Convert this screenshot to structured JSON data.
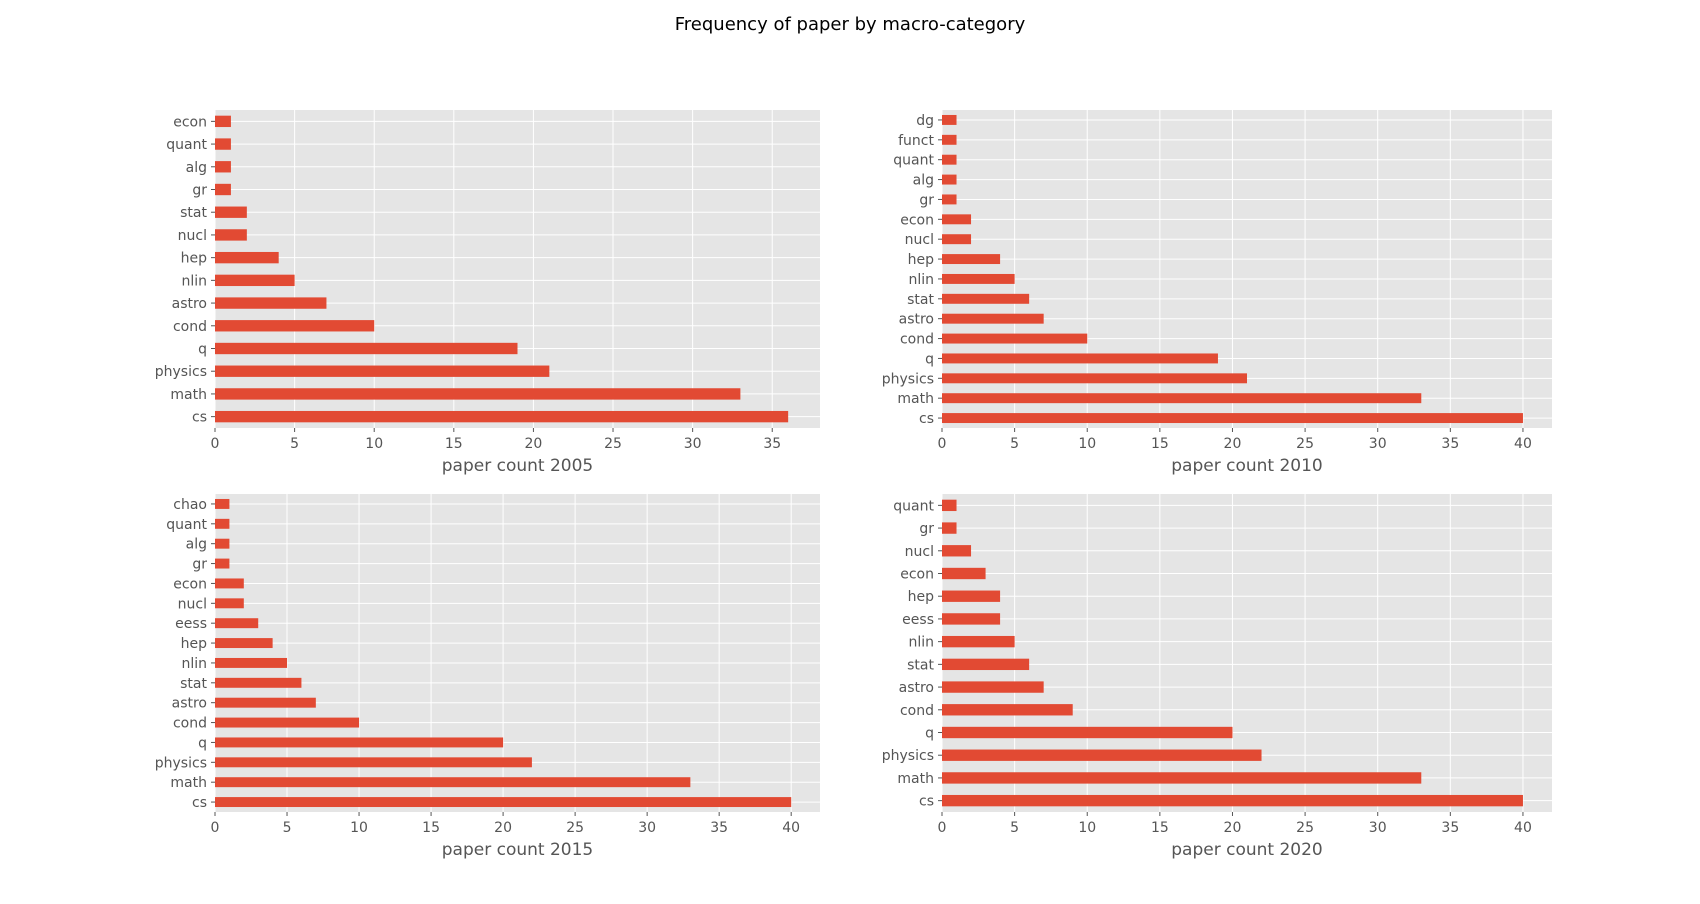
{
  "title": "Frequency of paper by macro-category",
  "colors": {
    "bar": "#e24a33",
    "plot_bg": "#e5e5e5",
    "grid": "#ffffff",
    "text": "#555555"
  },
  "chart_data": [
    {
      "type": "bar",
      "orientation": "horizontal",
      "xlabel": "paper count 2005",
      "xlim": [
        0,
        38
      ],
      "xticks": [
        0,
        5,
        10,
        15,
        20,
        25,
        30,
        35
      ],
      "categories": [
        "cs",
        "math",
        "physics",
        "q",
        "cond",
        "astro",
        "nlin",
        "hep",
        "nucl",
        "stat",
        "gr",
        "alg",
        "quant",
        "econ"
      ],
      "values": [
        36,
        33,
        21,
        19,
        10,
        7,
        5,
        4,
        2,
        2,
        1,
        1,
        1,
        1
      ],
      "grid": true
    },
    {
      "type": "bar",
      "orientation": "horizontal",
      "xlabel": "paper count 2010",
      "xlim": [
        0,
        42
      ],
      "xticks": [
        0,
        5,
        10,
        15,
        20,
        25,
        30,
        35,
        40
      ],
      "categories": [
        "cs",
        "math",
        "physics",
        "q",
        "cond",
        "astro",
        "stat",
        "nlin",
        "hep",
        "nucl",
        "econ",
        "gr",
        "alg",
        "quant",
        "funct",
        "dg"
      ],
      "values": [
        40,
        33,
        21,
        19,
        10,
        7,
        6,
        5,
        4,
        2,
        2,
        1,
        1,
        1,
        1,
        1
      ],
      "grid": true
    },
    {
      "type": "bar",
      "orientation": "horizontal",
      "xlabel": "paper count 2015",
      "xlim": [
        0,
        42
      ],
      "xticks": [
        0,
        5,
        10,
        15,
        20,
        25,
        30,
        35,
        40
      ],
      "categories": [
        "cs",
        "math",
        "physics",
        "q",
        "cond",
        "astro",
        "stat",
        "nlin",
        "hep",
        "eess",
        "nucl",
        "econ",
        "gr",
        "alg",
        "quant",
        "chao"
      ],
      "values": [
        40,
        33,
        22,
        20,
        10,
        7,
        6,
        5,
        4,
        3,
        2,
        2,
        1,
        1,
        1,
        1
      ],
      "grid": true
    },
    {
      "type": "bar",
      "orientation": "horizontal",
      "xlabel": "paper count 2020",
      "xlim": [
        0,
        42
      ],
      "xticks": [
        0,
        5,
        10,
        15,
        20,
        25,
        30,
        35,
        40
      ],
      "categories": [
        "cs",
        "math",
        "physics",
        "q",
        "cond",
        "astro",
        "stat",
        "nlin",
        "eess",
        "hep",
        "econ",
        "nucl",
        "gr",
        "quant"
      ],
      "values": [
        40,
        33,
        22,
        20,
        9,
        7,
        6,
        5,
        4,
        4,
        3,
        2,
        1,
        1
      ],
      "grid": true
    }
  ]
}
